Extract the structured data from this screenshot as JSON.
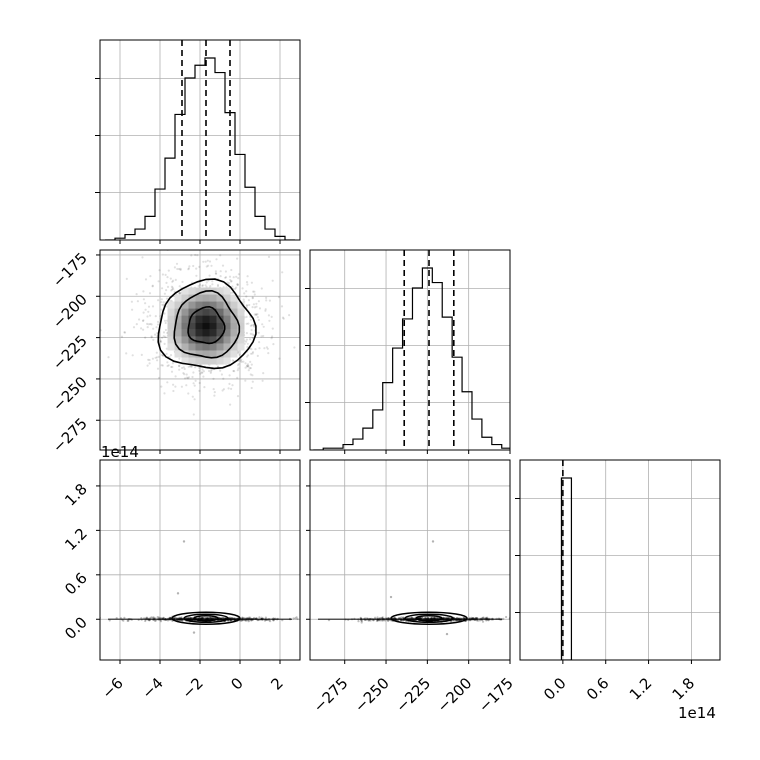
{
  "chart_data": [
    {
      "type": "histogram",
      "panel": "p1",
      "xlim": [
        -7,
        3
      ],
      "grid": true,
      "bins_x": [
        -6.5,
        -6.0,
        -5.5,
        -5.0,
        -4.5,
        -4.0,
        -3.5,
        -3.0,
        -2.5,
        -2.0,
        -1.5,
        -1.0,
        -0.5,
        0.0,
        0.5,
        1.0,
        1.5,
        2.0,
        2.5
      ],
      "counts": [
        0.0,
        0.01,
        0.03,
        0.06,
        0.13,
        0.28,
        0.45,
        0.69,
        0.89,
        0.96,
        1.0,
        0.92,
        0.7,
        0.47,
        0.29,
        0.13,
        0.06,
        0.02,
        0.0
      ],
      "quantiles": [
        -2.9,
        -1.7,
        -0.5
      ],
      "x_ticks": [
        -6,
        -4,
        -2,
        0,
        2
      ]
    },
    {
      "type": "histogram",
      "panel": "p4",
      "xlim": [
        -296,
        -175
      ],
      "grid": true,
      "bins_x": [
        -291,
        -285,
        -279,
        -273,
        -267,
        -261,
        -255,
        -249,
        -243,
        -237,
        -231,
        -225,
        -219,
        -213,
        -207,
        -201,
        -195,
        -189,
        -183,
        -177
      ],
      "counts": [
        0.0,
        0.01,
        0.01,
        0.03,
        0.06,
        0.12,
        0.22,
        0.37,
        0.56,
        0.72,
        0.89,
        1.0,
        0.92,
        0.73,
        0.51,
        0.32,
        0.17,
        0.07,
        0.03,
        0.01
      ],
      "quantiles": [
        -239,
        -224,
        -209
      ],
      "x_ticks": [
        -275,
        -250,
        -225,
        -200,
        -175
      ]
    },
    {
      "type": "histogram",
      "panel": "p6",
      "xlim": [
        -0.6,
        2.2
      ],
      "grid": true,
      "bars": [
        {
          "x0": -0.02,
          "x1": 0.12,
          "height": 1.0
        }
      ],
      "quantiles": [
        0.0
      ],
      "x_ticks": [
        0.0,
        0.6,
        1.2,
        1.8
      ],
      "x_tick_labels": [
        "0.0",
        "0.6",
        "1.2",
        "1.8"
      ]
    },
    {
      "type": "scatter",
      "panel": "p2",
      "note": "2D density with contours",
      "xlim": [
        -7,
        3
      ],
      "ylim": [
        -293,
        -172
      ],
      "center": [
        -1.7,
        -218
      ],
      "y_ticks": [
        -175,
        -200,
        -225,
        -250,
        -275
      ]
    },
    {
      "type": "scatter",
      "panel": "p3",
      "xlim": [
        -7,
        3
      ],
      "ylim": [
        -0.55,
        2.15
      ],
      "center": [
        -1.7,
        0.05
      ],
      "y_ticks": [
        0.0,
        0.6,
        1.2,
        1.8
      ],
      "y_tick_labels": [
        "0.0",
        "0.6",
        "1.2",
        "1.8"
      ],
      "offset_label": "1e14"
    },
    {
      "type": "scatter",
      "panel": "p5",
      "xlim": [
        -296,
        -175
      ],
      "ylim": [
        -0.55,
        2.15
      ],
      "center": [
        -224,
        0.05
      ]
    }
  ],
  "texts": {
    "p3_offset": "1e14",
    "p6_offset": "1e14"
  }
}
